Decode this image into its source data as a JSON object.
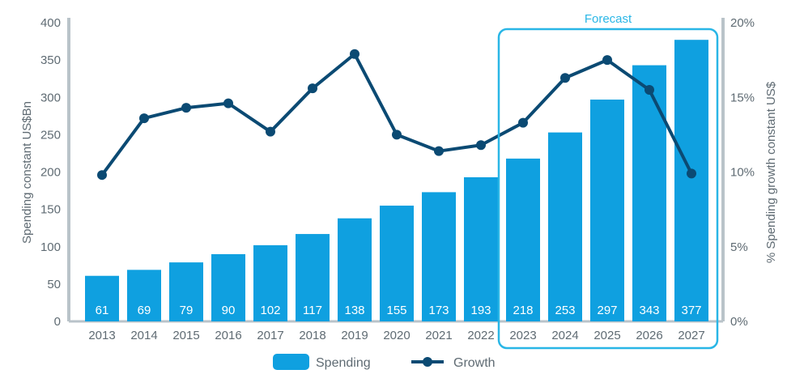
{
  "chart_data": {
    "type": "bar",
    "categories": [
      "2013",
      "2014",
      "2015",
      "2016",
      "2017",
      "2018",
      "2019",
      "2020",
      "2021",
      "2022",
      "2023",
      "2024",
      "2025",
      "2026",
      "2027"
    ],
    "series": [
      {
        "name": "Spending",
        "type": "bar",
        "axis": "left",
        "values": [
          61,
          69,
          79,
          90,
          102,
          117,
          138,
          155,
          173,
          193,
          218,
          253,
          297,
          343,
          377
        ]
      },
      {
        "name": "Growth",
        "type": "line",
        "axis": "right",
        "values": [
          9.8,
          13.6,
          14.3,
          14.6,
          12.7,
          15.6,
          17.9,
          12.5,
          11.4,
          11.8,
          13.3,
          16.3,
          17.5,
          15.5,
          9.9
        ]
      }
    ],
    "ylabel_left": "Spending constant US$Bn",
    "ylabel_right": "% Spending growth constant US$",
    "ylim_left": [
      0,
      400
    ],
    "ylim_right": [
      0,
      20
    ],
    "yticks_left": [
      "0",
      "50",
      "100",
      "150",
      "200",
      "250",
      "300",
      "350",
      "400"
    ],
    "yticks_right": [
      "0%",
      "5%",
      "10%",
      "15%",
      "20%"
    ],
    "bar_labels": [
      "61",
      "69",
      "79",
      "90",
      "102",
      "117",
      "138",
      "155",
      "173",
      "193",
      "218",
      "253",
      "297",
      "343",
      "377"
    ],
    "forecast": {
      "label": "Forecast",
      "from": "2023",
      "to": "2027"
    },
    "legend": {
      "position": "bottom",
      "items": [
        {
          "label": "Spending",
          "kind": "bar"
        },
        {
          "label": "Growth",
          "kind": "line"
        }
      ]
    },
    "grid": false,
    "colors": {
      "bar": "#0fa0e0",
      "line": "#0b4a73",
      "axis": "#b9c3c9",
      "forecast": "#29b6e6",
      "text": "#5f6b73"
    }
  }
}
